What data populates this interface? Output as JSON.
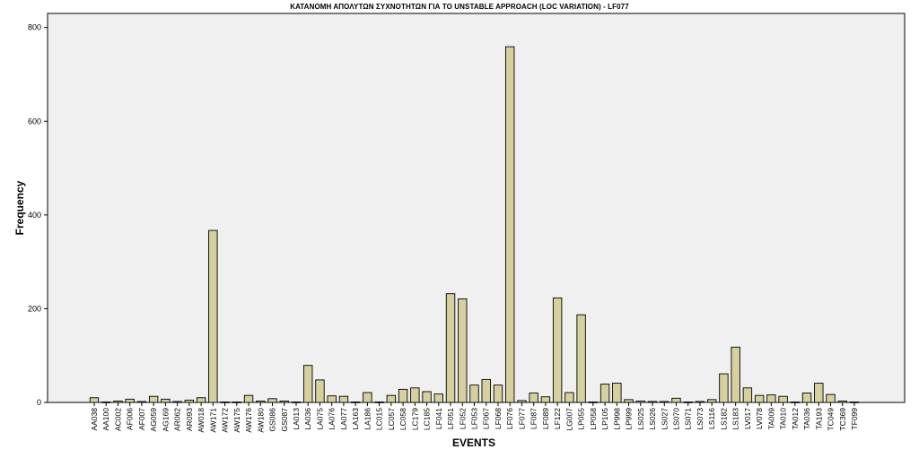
{
  "chart_data": {
    "type": "bar",
    "title": "ΚΑΤΑΝΟΜΗ ΑΠΟΛΥΤΩΝ ΣΥΧΝΟΤΗΤΩΝ ΓΙΑ ΤΟ UNSTABLE APPROACH (LOC VARIATION) - LF077",
    "xlabel": "EVENTS",
    "ylabel": "Frequency",
    "ylim": [
      0,
      830
    ],
    "yticks": [
      0,
      200,
      400,
      600,
      800
    ],
    "grid": false,
    "colors": {
      "bar_fill": "#d6cf9e",
      "bar_stroke": "#000000",
      "plot_bg": "#f0f0f0"
    },
    "categories": [
      "AA038",
      "AA100",
      "AC002",
      "AF006",
      "AF007",
      "AG059",
      "AG169",
      "AR062",
      "AR093",
      "AW018",
      "AW171",
      "AW172",
      "AW175",
      "AW176",
      "AW180",
      "GS086",
      "GS087",
      "LA013",
      "LA036",
      "LA075",
      "LA076",
      "LA077",
      "LA163",
      "LA186",
      "LC015",
      "LC057",
      "LC058",
      "LC179",
      "LC185",
      "LF041",
      "LF051",
      "LF052",
      "LF053",
      "LF067",
      "LF068",
      "LF076",
      "LF077",
      "LF087",
      "LF089",
      "LF122",
      "LG007",
      "LP055",
      "LP058",
      "LP105",
      "LP998",
      "LP999",
      "LS025",
      "LS026",
      "LS027",
      "LS070",
      "LS071",
      "LS073",
      "LS116",
      "LS182",
      "LS183",
      "LV017",
      "LV078",
      "TA009",
      "TA010",
      "TA012",
      "TA036",
      "TA193",
      "TC049",
      "TC369",
      "TF099"
    ],
    "values": [
      10,
      1,
      3,
      7,
      2,
      13,
      7,
      2,
      5,
      10,
      367,
      1,
      1,
      15,
      3,
      8,
      3,
      1,
      79,
      48,
      14,
      13,
      1,
      21,
      1,
      15,
      28,
      31,
      23,
      18,
      232,
      221,
      37,
      49,
      37,
      759,
      4,
      20,
      12,
      223,
      21,
      187,
      1,
      39,
      41,
      6,
      3,
      2,
      2,
      9,
      1,
      2,
      6,
      61,
      118,
      31,
      15,
      16,
      13,
      1,
      20,
      41,
      17,
      3,
      1
    ]
  }
}
